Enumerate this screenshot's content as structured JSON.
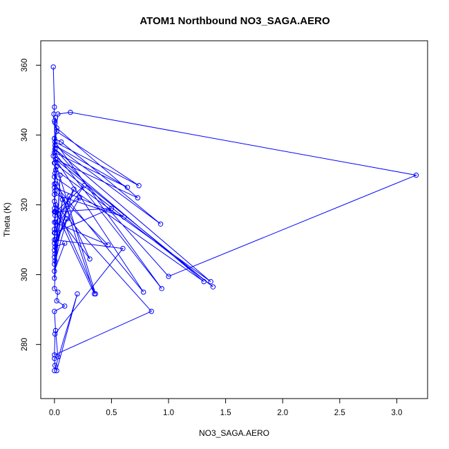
{
  "chart_data": {
    "type": "line",
    "title": "ATOM1 Northbound NO3_SAGA.AERO",
    "xlabel": "NO3_SAGA.AERO",
    "ylabel": "Theta (K)",
    "xlim": [
      -0.12,
      3.27
    ],
    "ylim": [
      264.5,
      367.0
    ],
    "xticks": [
      "0.0",
      "0.5",
      "1.0",
      "1.5",
      "2.0",
      "2.5",
      "3.0"
    ],
    "xtick_values": [
      0.0,
      0.5,
      1.0,
      1.5,
      2.0,
      2.5,
      3.0
    ],
    "yticks": [
      "280",
      "300",
      "320",
      "340",
      "360"
    ],
    "ytick_values": [
      280,
      300,
      320,
      340,
      360
    ],
    "grid": false,
    "series": [
      {
        "color": "#0000ff",
        "marker": "circle-open",
        "x": [
          -0.01,
          0.0,
          -0.005,
          0.005,
          0.0,
          0.01,
          -0.01,
          0.03,
          0.14,
          3.17,
          1.0,
          0.005,
          0.0,
          0.02,
          0.74,
          0.005,
          0.94,
          0.0,
          0.0,
          0.06,
          0.93,
          0.005,
          0.64,
          0.0,
          0.02,
          0.73,
          0.01,
          1.39,
          0.0,
          0.005,
          1.37,
          0.01,
          0.005,
          1.31,
          0.0,
          0.01,
          0.78,
          0.0,
          0.005,
          0.0,
          0.61,
          0.0,
          0.02,
          0.36,
          0.0,
          0.005,
          0.35,
          0.0,
          0.01,
          0.31,
          0.0,
          0.005,
          0.47,
          0.0,
          0.01,
          0.85,
          0.0,
          0.005,
          0.6,
          0.0,
          0.005,
          0.5,
          0.0,
          0.01,
          0.26,
          0.0,
          0.005,
          0.22,
          0.0,
          0.01,
          0.17,
          0.0,
          0.005,
          0.13,
          0.0,
          0.01,
          0.11,
          0.0,
          0.005,
          0.09,
          0.0,
          0.005,
          0.07,
          0.0,
          0.005,
          0.05,
          0.0,
          0.03,
          0.02,
          0.09,
          0.0,
          0.01,
          0.03,
          0.0,
          0.005,
          0.02,
          0.2,
          0.0
        ],
        "y": [
          359.5,
          348.0,
          346.0,
          343.5,
          339.0,
          345.0,
          334.0,
          346.0,
          346.5,
          328.5,
          299.5,
          336.0,
          344.0,
          341.0,
          325.5,
          338.0,
          296.0,
          335.0,
          339.0,
          338.0,
          314.5,
          337.0,
          325.0,
          335.0,
          342.0,
          322.0,
          333.0,
          296.5,
          332.0,
          336.0,
          298.0,
          330.0,
          334.0,
          298.0,
          328.0,
          333.0,
          295.0,
          326.0,
          332.0,
          323.0,
          316.5,
          325.0,
          331.0,
          294.5,
          321.0,
          329.0,
          294.5,
          319.0,
          326.0,
          304.5,
          318.0,
          324.0,
          308.5,
          315.0,
          320.0,
          289.5,
          277.0,
          283.0,
          307.5,
          310.0,
          318.0,
          319.0,
          312.0,
          318.0,
          325.5,
          313.0,
          317.0,
          322.0,
          309.0,
          315.0,
          324.5,
          307.0,
          312.0,
          322.5,
          305.0,
          310.0,
          316.0,
          303.0,
          308.0,
          309.0,
          301.0,
          306.0,
          321.5,
          299.0,
          304.0,
          328.5,
          296.0,
          295.0,
          292.5,
          291.0,
          289.5,
          284.0,
          276.5,
          276.0,
          274.0,
          272.5,
          294.5,
          272.5
        ]
      }
    ]
  }
}
